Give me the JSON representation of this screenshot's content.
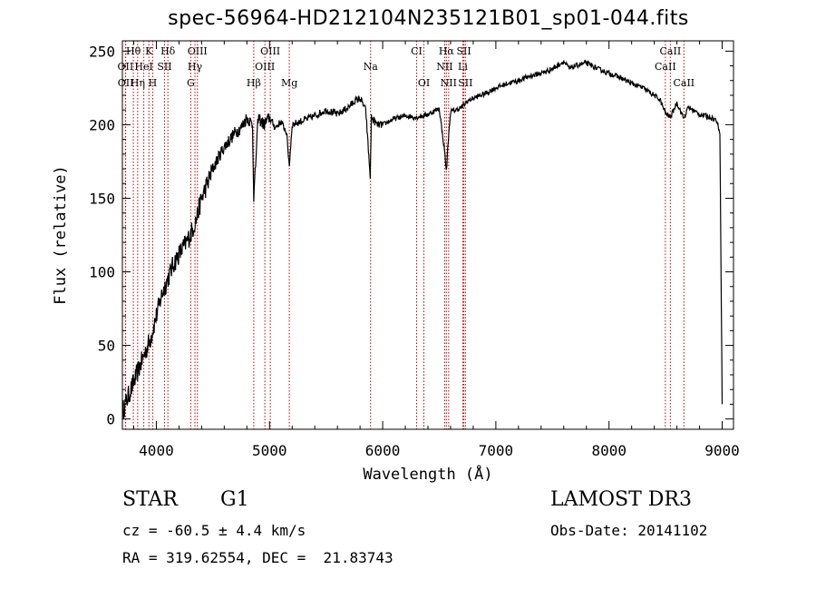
{
  "header": {
    "title": "spec-56964-HD212104N235121B01_sp01-044.fits"
  },
  "info": {
    "object_class": "STAR",
    "subclass": "G1",
    "survey": "LAMOST DR3",
    "redshift": "cz = -60.5 ± 4.4 km/s",
    "obs_date": "Obs-Date: 20141102",
    "coords": "RA = 319.62554, DEC =  21.83743"
  },
  "chart_data": {
    "type": "line",
    "title": "spec-56964-HD212104N235121B01_sp01-044.fits",
    "xlabel": "Wavelength (Å)",
    "ylabel": "Flux (relative)",
    "xlim": [
      3700,
      9100
    ],
    "ylim": [
      -7,
      257
    ],
    "x_ticks": [
      4000,
      5000,
      6000,
      7000,
      8000,
      9000
    ],
    "y_ticks": [
      0,
      50,
      100,
      150,
      200,
      250
    ],
    "grid": false,
    "line_color": "#000000",
    "marker_color": "#cc0000",
    "series": [
      {
        "x": [
          3700,
          3750,
          3800,
          3850,
          3900,
          3950,
          4000,
          4050,
          4100,
          4150,
          4200,
          4250,
          4300,
          4350,
          4400,
          4450,
          4500,
          4550,
          4600,
          4650,
          4700,
          4750,
          4800,
          4850,
          4861,
          4900,
          4950,
          5000,
          5050,
          5100,
          5150,
          5175,
          5200,
          5300,
          5400,
          5500,
          5600,
          5700,
          5750,
          5800,
          5850,
          5890,
          5900,
          5950,
          6000,
          6100,
          6200,
          6300,
          6400,
          6500,
          6550,
          6563,
          6580,
          6600,
          6650,
          6700,
          6750,
          6800,
          6900,
          7000,
          7100,
          7200,
          7300,
          7400,
          7500,
          7600,
          7650,
          7700,
          7800,
          7900,
          8000,
          8100,
          8200,
          8300,
          8400,
          8450,
          8498,
          8542,
          8600,
          8662,
          8700,
          8800,
          8900,
          8950,
          8980,
          9000
        ],
        "y": [
          5,
          15,
          25,
          35,
          45,
          55,
          70,
          85,
          95,
          105,
          112,
          118,
          125,
          135,
          150,
          160,
          170,
          178,
          185,
          190,
          195,
          198,
          205,
          200,
          150,
          205,
          200,
          205,
          198,
          202,
          195,
          172,
          200,
          203,
          206,
          210,
          207,
          212,
          216,
          218,
          210,
          165,
          205,
          200,
          200,
          204,
          206,
          205,
          207,
          211,
          180,
          168,
          190,
          209,
          210,
          212,
          216,
          218,
          221,
          225,
          228,
          230,
          233,
          235,
          238,
          243,
          238,
          240,
          242,
          238,
          235,
          232,
          228,
          225,
          220,
          217,
          208,
          205,
          215,
          204,
          212,
          207,
          205,
          203,
          195,
          10
        ]
      }
    ],
    "lines": [
      {
        "label": "Hθ",
        "x": 3797,
        "row": 0
      },
      {
        "label": "K",
        "x": 3934,
        "row": 0
      },
      {
        "label": "Hδ",
        "x": 4102,
        "row": 0
      },
      {
        "label": "OII",
        "x": 3727,
        "row": 1
      },
      {
        "label": "HeI",
        "x": 3889,
        "row": 1
      },
      {
        "label": "SII",
        "x": 4072,
        "row": 1
      },
      {
        "label": "OIII",
        "x": 4363,
        "row": 0
      },
      {
        "label": "Hγ",
        "x": 4341,
        "row": 1
      },
      {
        "label": "OIII",
        "x": 4959,
        "row": 1
      },
      {
        "label": "OIII",
        "x": 5007,
        "row": 0
      },
      {
        "label": "CI",
        "x": 6300,
        "row": 0
      },
      {
        "label": "Hα",
        "x": 6563,
        "row": 0
      },
      {
        "label": "SII",
        "x": 6717,
        "row": 0
      },
      {
        "label": "NII",
        "x": 6548,
        "row": 1
      },
      {
        "label": "Li",
        "x": 6708,
        "row": 1
      },
      {
        "label": "OII",
        "x": 3729,
        "row": 2
      },
      {
        "label": "Hη",
        "x": 3835,
        "row": 2
      },
      {
        "label": "H",
        "x": 3968,
        "row": 2
      },
      {
        "label": "G",
        "x": 4304,
        "row": 2
      },
      {
        "label": "Hβ",
        "x": 4861,
        "row": 2
      },
      {
        "label": "Mg",
        "x": 5175,
        "row": 2
      },
      {
        "label": "Na",
        "x": 5893,
        "row": 1
      },
      {
        "label": "OI",
        "x": 6364,
        "row": 2
      },
      {
        "label": "NII",
        "x": 6583,
        "row": 2
      },
      {
        "label": "SII",
        "x": 6731,
        "row": 2
      },
      {
        "label": "CaII",
        "x": 8542,
        "row": 0
      },
      {
        "label": "CaII",
        "x": 8498,
        "row": 1
      },
      {
        "label": "CaII",
        "x": 8662,
        "row": 2
      }
    ]
  }
}
